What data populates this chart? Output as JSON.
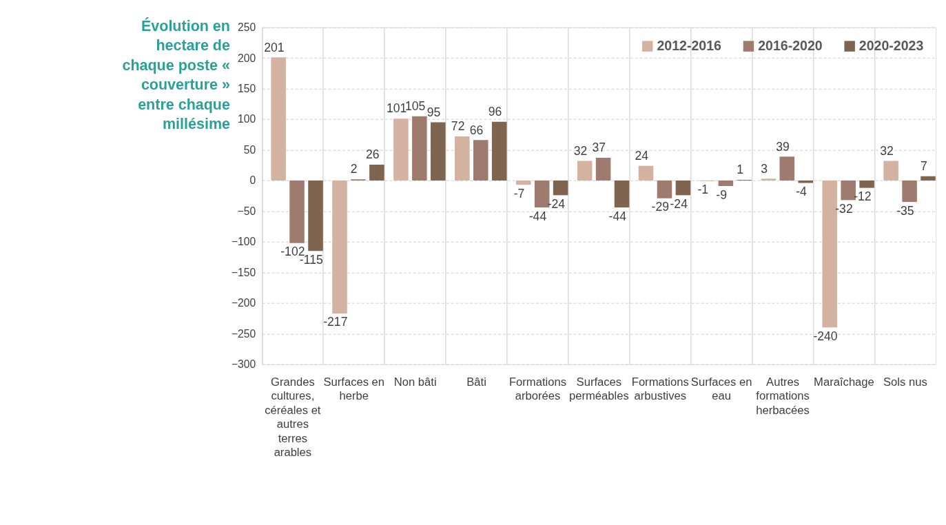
{
  "chart_data": {
    "type": "bar",
    "ylabel": "Évolution en hectare de chaque poste « couverture » entre chaque millésime",
    "categories": [
      "Grandes cultures, céréales et autres terres arables",
      "Surfaces en herbe",
      "Non bâti",
      "Bâti",
      "Formations arborées",
      "Surfaces perméables",
      "Formations arbustives",
      "Surfaces en eau",
      "Autres formations herbacées",
      "Maraîchage",
      "Sols nus"
    ],
    "series": [
      {
        "name": "2012-2016",
        "color": "#d4b2a2",
        "values": [
          201,
          -217,
          101,
          72,
          -7,
          32,
          24,
          -1,
          3,
          -240,
          32
        ]
      },
      {
        "name": "2016-2020",
        "color": "#9e7b6e",
        "values": [
          -102,
          2,
          105,
          66,
          -44,
          37,
          -29,
          -9,
          39,
          -32,
          -35
        ]
      },
      {
        "name": "2020-2023",
        "color": "#7f6550",
        "values": [
          -115,
          26,
          95,
          96,
          -24,
          -44,
          -24,
          1,
          -4,
          -12,
          7
        ]
      }
    ],
    "ylim": [
      -300,
      250
    ],
    "yticks": [
      -300,
      -250,
      -200,
      -150,
      -100,
      -50,
      0,
      50,
      100,
      150,
      200,
      250
    ],
    "grid": true,
    "legend": "top right",
    "data_labels": true
  }
}
